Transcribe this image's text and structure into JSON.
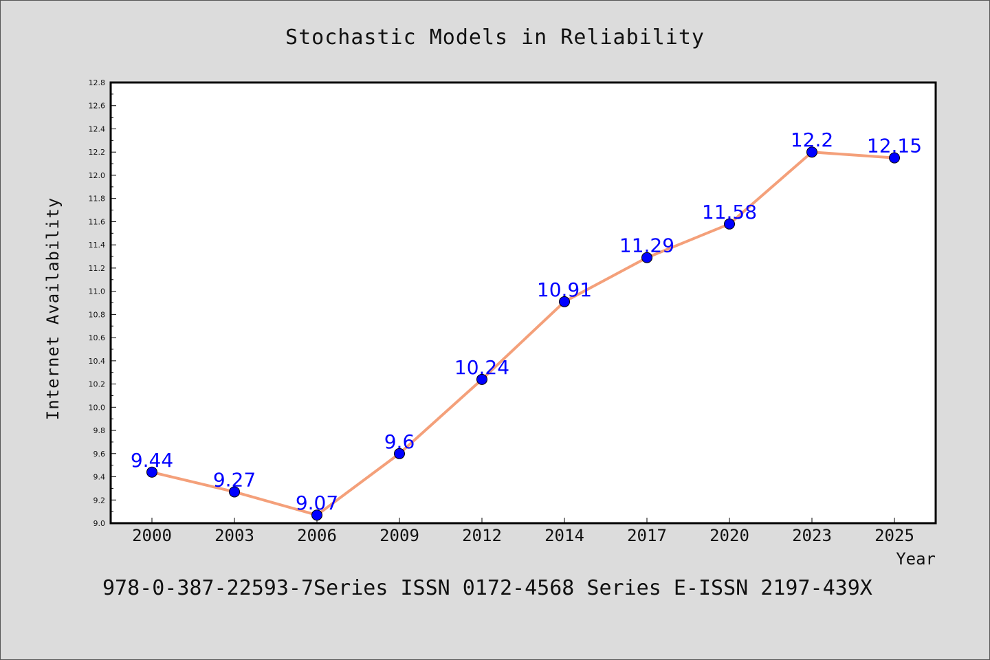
{
  "chart_data": {
    "type": "line",
    "title": "Stochastic Models in Reliability",
    "xlabel": "Year",
    "ylabel": "Internet Availability",
    "categories": [
      "2000",
      "2003",
      "2006",
      "2009",
      "2012",
      "2014",
      "2017",
      "2020",
      "2023",
      "2025"
    ],
    "series": [
      {
        "values": [
          9.44,
          9.27,
          9.07,
          9.6,
          10.24,
          10.91,
          11.29,
          11.58,
          12.2,
          12.15
        ]
      }
    ],
    "data_labels": [
      "9.44",
      "9.27",
      "9.07",
      "9.6",
      "10.24",
      "10.91",
      "11.29",
      "11.58",
      "12.2",
      "12.15"
    ],
    "ylim": [
      9.0,
      12.8
    ],
    "y_major_step": 0.2,
    "y_tick_labels": [
      "9.0",
      "9.2",
      "9.4",
      "9.6",
      "9.8",
      "10.0",
      "10.2",
      "10.4",
      "10.6",
      "10.8",
      "11.0",
      "11.2",
      "11.4",
      "11.6",
      "11.8",
      "12.0",
      "12.2",
      "12.4",
      "12.6",
      "12.8"
    ],
    "grid": false,
    "line_color": "#f4a07a",
    "marker_color": "#0000ff",
    "label_color": "#0000ff",
    "background_color": "#dcdcdc",
    "plot_background_color": "#ffffff"
  },
  "footer_text": "978-0-387-22593-7Series ISSN 0172-4568 Series E-ISSN 2197-439X"
}
